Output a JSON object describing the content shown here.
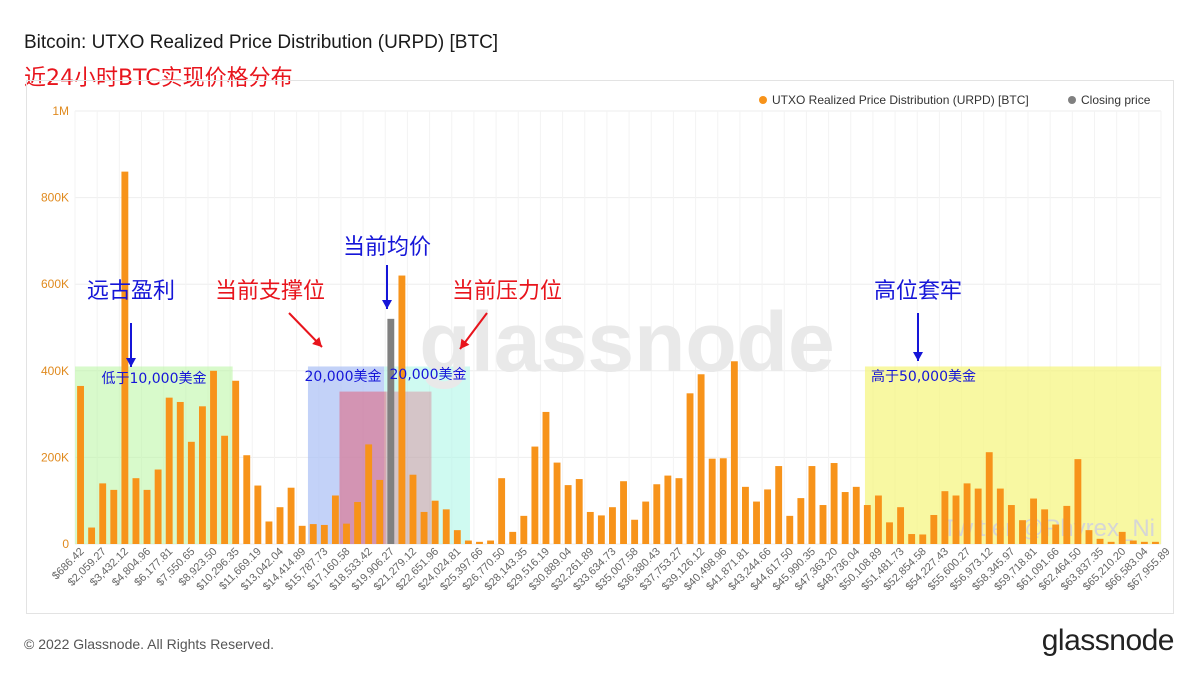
{
  "header": {
    "title": "Bitcoin: UTXO Realized Price Distribution (URPD) [BTC]",
    "subtitle": "近24小时BTC实现价格分布"
  },
  "footer": {
    "copyright": "© 2022 Glassnode. All Rights Reserved.",
    "brand": "glassnode"
  },
  "watermark": {
    "logo": "glassnode",
    "twitter": "Twitter @Phyrex_Ni"
  },
  "colors": {
    "bar": "#f7931a",
    "closing": "#808080",
    "zone_green": "#b8f5a0",
    "zone_blue": "#a9bff5",
    "zone_cyan": "#a8f5e6",
    "zone_yellow": "#f5f57a",
    "zone_red": "#e0607a",
    "annot_blue": "#1515d8",
    "annot_red": "#e8141c"
  },
  "annotations": {
    "ancient_profit": "远古盈利",
    "below_10k": "低于10,000美金",
    "support": "当前支撑位",
    "support_price": "20,000美金",
    "avg_price": "当前均价",
    "resistance": "当前压力位",
    "resistance_price": "20,000美金",
    "trapped_high": "高位套牢",
    "above_50k": "高于50,000美金"
  },
  "chart_data": {
    "type": "bar",
    "ylim": [
      0,
      1000000
    ],
    "yticks": [
      {
        "value": 0,
        "label": "0"
      },
      {
        "value": 200000,
        "label": "200K"
      },
      {
        "value": 400000,
        "label": "400K"
      },
      {
        "value": 600000,
        "label": "600K"
      },
      {
        "value": 800000,
        "label": "800K"
      },
      {
        "value": 1000000,
        "label": "1M"
      }
    ],
    "xtick_labels": [
      "$686.42",
      "$2,059.27",
      "$3,432.12",
      "$4,804.96",
      "$6,177.81",
      "$7,550.65",
      "$8,923.50",
      "$10,296.35",
      "$11,669.19",
      "$13,042.04",
      "$14,414.89",
      "$15,787.73",
      "$17,160.58",
      "$18,533.42",
      "$19,906.27",
      "$21,279.12",
      "$22,651.96",
      "$24,024.81",
      "$25,397.66",
      "$26,770.50",
      "$28,143.35",
      "$29,516.19",
      "$30,889.04",
      "$32,261.89",
      "$33,634.73",
      "$35,007.58",
      "$36,380.43",
      "$37,753.27",
      "$39,126.12",
      "$40,498.96",
      "$41,871.81",
      "$43,244.66",
      "$44,617.50",
      "$45,990.35",
      "$47,363.20",
      "$48,736.04",
      "$50,108.89",
      "$51,481.73",
      "$52,854.58",
      "$54,227.43",
      "$55,600.27",
      "$56,973.12",
      "$58,345.97",
      "$59,718.81",
      "$61,091.66",
      "$62,464.50",
      "$63,837.35",
      "$65,210.20",
      "$66,583.04",
      "$67,955.89"
    ],
    "values": [
      365000,
      38000,
      140000,
      125000,
      860000,
      152000,
      125000,
      172000,
      338000,
      328000,
      236000,
      318000,
      400000,
      250000,
      377000,
      205000,
      135000,
      52000,
      85000,
      130000,
      42000,
      46000,
      44000,
      112000,
      47000,
      97000,
      230000,
      148000,
      520000,
      620000,
      160000,
      74000,
      100000,
      80000,
      32000,
      8000,
      5000,
      8000,
      152000,
      28000,
      65000,
      225000,
      305000,
      188000,
      136000,
      150000,
      74000,
      66000,
      85000,
      145000,
      56000,
      98000,
      138000,
      158000,
      152000,
      348000,
      392000,
      197000,
      198000,
      422000,
      132000,
      98000,
      126000,
      180000,
      65000,
      106000,
      180000,
      90000,
      187000,
      120000,
      132000,
      90000,
      112000,
      50000,
      85000,
      23000,
      22000,
      67000,
      122000,
      112000,
      140000,
      128000,
      212000,
      128000,
      90000,
      55000,
      105000,
      80000,
      45000,
      88000,
      196000,
      32000,
      12000,
      5000,
      28000,
      8000,
      5000,
      5000
    ],
    "closing_price_index": 28,
    "legend": [
      {
        "name": "UTXO Realized Price Distribution (URPD) [BTC]",
        "color": "#f7931a"
      },
      {
        "name": "Closing price",
        "color": "#808080"
      }
    ],
    "legend_position": "top-right"
  }
}
